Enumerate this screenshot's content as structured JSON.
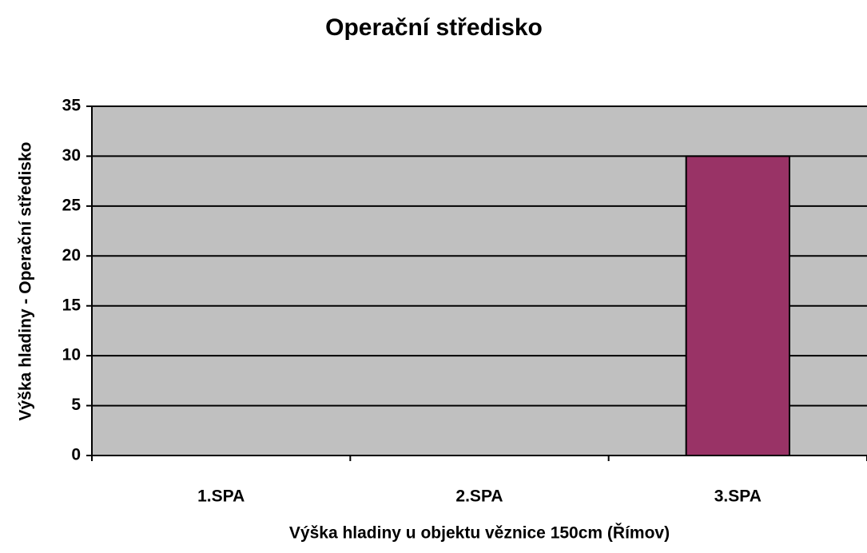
{
  "chart_data": {
    "type": "bar",
    "title": "Operační středisko",
    "x_label": "Výška hladiny u objektu věznice 150cm (Římov)",
    "y_label": "Výška hladiny - Operační středisko",
    "categories": [
      "1.SPA",
      "2.SPA",
      "3.SPA"
    ],
    "values": [
      0,
      0,
      30
    ],
    "color": "#993366",
    "ylim": [
      0,
      35
    ],
    "yticks": [
      0,
      5,
      10,
      15,
      20,
      25,
      30,
      35
    ],
    "grid": true
  }
}
